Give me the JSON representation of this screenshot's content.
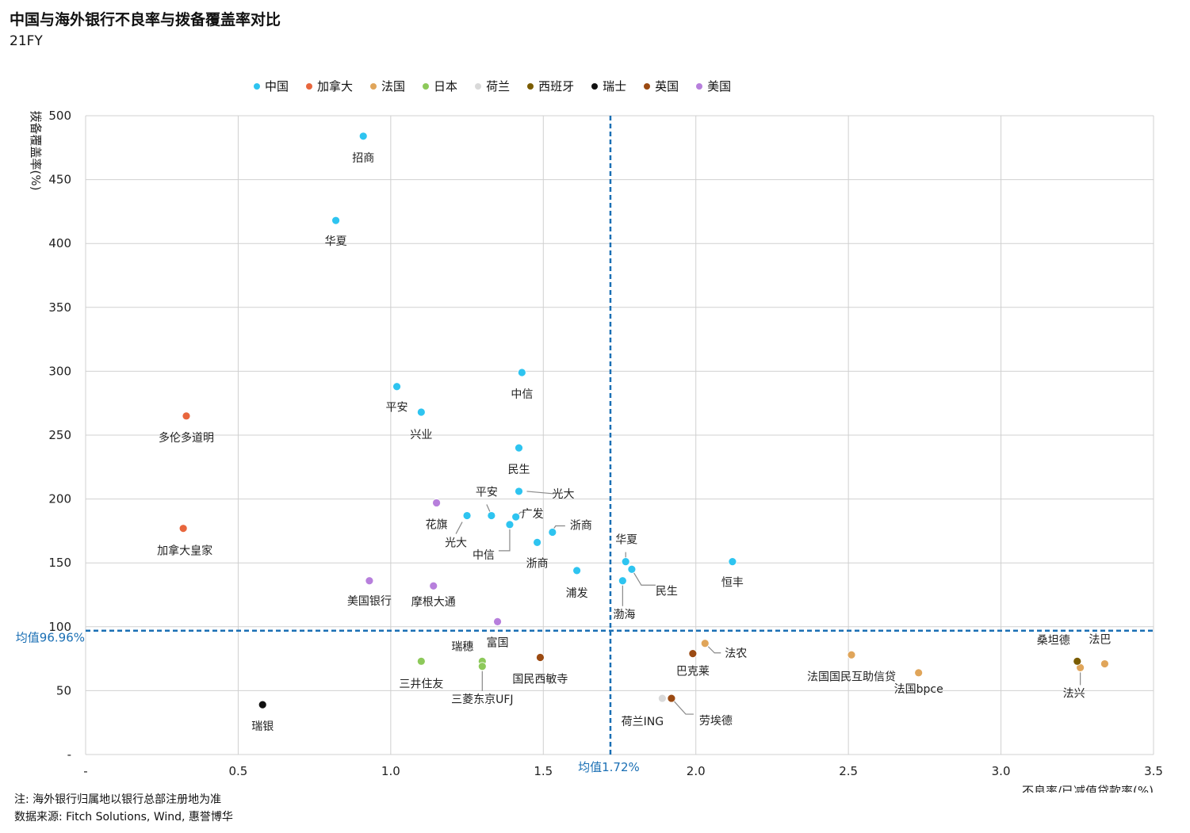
{
  "title": "中国与海外银行不良率与拨备覆盖率对比",
  "subtitle": "21FY",
  "footnote_1": "注: 海外银行归属地以银行总部注册地为准",
  "footnote_2": "数据来源: Fitch Solutions, Wind, 惠誉博华",
  "chart_data": {
    "type": "scatter",
    "xlabel": "不良率/已减值贷款率(%)",
    "ylabel": "拨备覆盖率(%)",
    "xlim": [
      0,
      3.5
    ],
    "ylim": [
      0,
      500
    ],
    "x_ticks": [
      0,
      0.5,
      1.0,
      1.5,
      2.0,
      2.5,
      3.0,
      3.5
    ],
    "x_tick_labels": [
      "-",
      "0.5",
      "1.0",
      "1.5",
      "2.0",
      "2.5",
      "3.0",
      "3.5"
    ],
    "y_ticks": [
      0,
      50,
      100,
      150,
      200,
      250,
      300,
      350,
      400,
      450,
      500
    ],
    "y_tick_labels": [
      "-",
      "50",
      "100",
      "150",
      "200",
      "250",
      "300",
      "350",
      "400",
      "450",
      "500"
    ],
    "grid": true,
    "legend_position": "top",
    "mean_x": 1.72,
    "mean_x_label": "均值1.72%",
    "mean_y": 96.96,
    "mean_y_label": "均值96.96%",
    "mean_line_color": "#1a6fb4",
    "series": [
      {
        "name": "中国",
        "color": "#2ec4f0",
        "points": [
          {
            "label": "招商",
            "x": 0.91,
            "y": 484
          },
          {
            "label": "华夏",
            "x": 0.82,
            "y": 418
          },
          {
            "label": "中信",
            "x": 1.43,
            "y": 299
          },
          {
            "label": "平安",
            "x": 1.02,
            "y": 288
          },
          {
            "label": "兴业",
            "x": 1.1,
            "y": 268
          },
          {
            "label": "民生",
            "x": 1.42,
            "y": 240
          },
          {
            "label": "光大",
            "x": 1.42,
            "y": 206
          },
          {
            "label": "平安",
            "x": 1.33,
            "y": 187
          },
          {
            "label": "光大",
            "x": 1.25,
            "y": 187
          },
          {
            "label": "广发",
            "x": 1.41,
            "y": 186
          },
          {
            "label": "中信",
            "x": 1.39,
            "y": 180
          },
          {
            "label": "浙商",
            "x": 1.53,
            "y": 174
          },
          {
            "label": "浙商",
            "x": 1.48,
            "y": 166
          },
          {
            "label": "浦发",
            "x": 1.61,
            "y": 144
          },
          {
            "label": "华夏",
            "x": 1.77,
            "y": 151
          },
          {
            "label": "民生",
            "x": 1.79,
            "y": 145
          },
          {
            "label": "渤海",
            "x": 1.76,
            "y": 136
          },
          {
            "label": "恒丰",
            "x": 2.12,
            "y": 151
          }
        ]
      },
      {
        "name": "加拿大",
        "color": "#e8663d",
        "points": [
          {
            "label": "多伦多道明",
            "x": 0.33,
            "y": 265
          },
          {
            "label": "加拿大皇家",
            "x": 0.32,
            "y": 177
          }
        ]
      },
      {
        "name": "法国",
        "color": "#e0a55a",
        "points": [
          {
            "label": "法农",
            "x": 2.03,
            "y": 87
          },
          {
            "label": "法国国民互助信贷",
            "x": 2.51,
            "y": 78
          },
          {
            "label": "法国bpce",
            "x": 2.73,
            "y": 64
          },
          {
            "label": "法巴",
            "x": 3.34,
            "y": 71
          },
          {
            "label": "法兴",
            "x": 3.26,
            "y": 68
          }
        ]
      },
      {
        "name": "日本",
        "color": "#8dc95a",
        "points": [
          {
            "label": "三井住友",
            "x": 1.1,
            "y": 73
          },
          {
            "label": "瑞穗",
            "x": 1.3,
            "y": 73
          },
          {
            "label": "三菱东京UFJ",
            "x": 1.3,
            "y": 69
          }
        ]
      },
      {
        "name": "荷兰",
        "color": "#d9d9d9",
        "points": [
          {
            "label": "荷兰ING",
            "x": 1.89,
            "y": 44
          }
        ]
      },
      {
        "name": "西班牙",
        "color": "#7a5c00",
        "points": [
          {
            "label": "桑坦德",
            "x": 3.25,
            "y": 73
          }
        ]
      },
      {
        "name": "瑞士",
        "color": "#111111",
        "points": [
          {
            "label": "瑞银",
            "x": 0.58,
            "y": 39
          }
        ]
      },
      {
        "name": "英国",
        "color": "#9b4a12",
        "points": [
          {
            "label": "巴克莱",
            "x": 1.99,
            "y": 79
          },
          {
            "label": "国民西敏寺",
            "x": 1.49,
            "y": 76
          },
          {
            "label": "劳埃德",
            "x": 1.92,
            "y": 44
          }
        ]
      },
      {
        "name": "美国",
        "color": "#b77fdc",
        "points": [
          {
            "label": "花旗",
            "x": 1.15,
            "y": 197
          },
          {
            "label": "美国银行",
            "x": 0.93,
            "y": 136
          },
          {
            "label": "摩根大通",
            "x": 1.14,
            "y": 132
          },
          {
            "label": "富国",
            "x": 1.35,
            "y": 104
          }
        ]
      }
    ]
  }
}
